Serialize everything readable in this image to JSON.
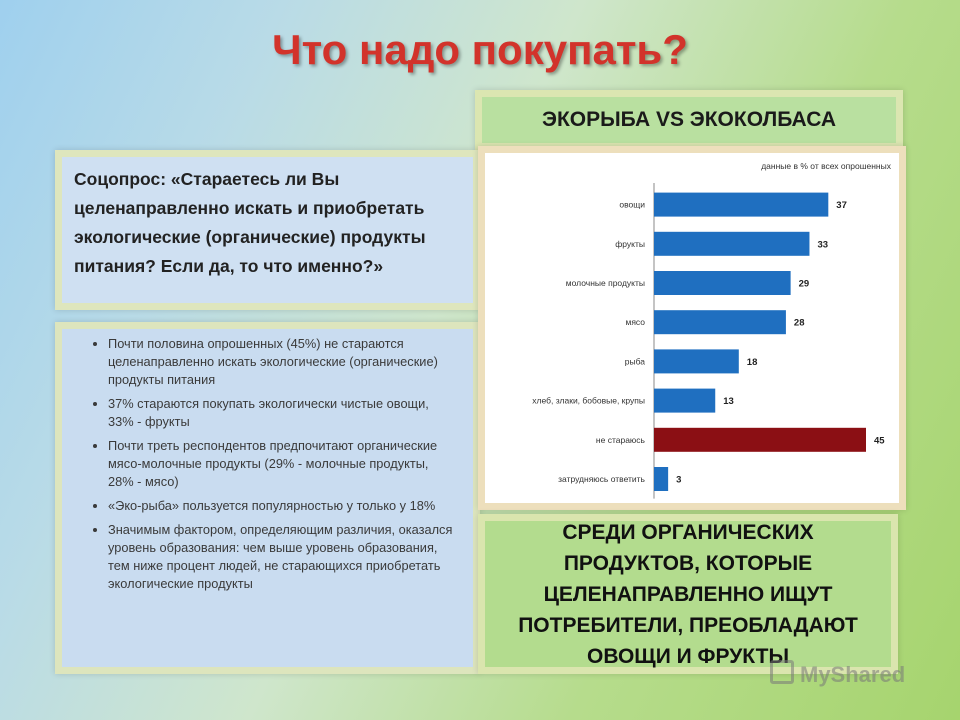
{
  "title": "Что надо покупать?",
  "subtitle": "ЭКОРЫБА VS ЭКОКОЛБАСА",
  "survey_question": "Соцопрос: «Стараетесь ли Вы целенаправленно искать и приобретать экологические (органические) продукты питания? Если да, то что именно?»",
  "bullets": [
    "Почти половина опрошенных (45%) не стараются целенаправленно искать экологические (органические) продукты питания",
    "37% стараются покупать экологически чистые овощи, 33% - фрукты",
    "Почти треть респондентов предпочитают органические мясо-молочные продукты (29% - молочные продукты, 28% - мясо)",
    "«Эко-рыба» пользуется популярностью у только у 18%",
    "Значимым фактором, определяющим различия, оказался уровень образования: чем выше уровень образования, тем ниже процент людей, не старающихся приобретать экологические продукты"
  ],
  "conclusion": "СРЕДИ ОРГАНИЧЕСКИХ ПРОДУКТОВ, КОТОРЫЕ ЦЕЛЕНАПРАВЛЕННО ИЩУТ ПОТРЕБИТЕЛИ, ПРЕОБЛАДАЮТ ОВОЩИ И ФРУКТЫ",
  "watermark": "MyShared",
  "chart_data": {
    "type": "bar",
    "orientation": "horizontal",
    "note": "данные в % от всех опрошенных",
    "categories": [
      "овощи",
      "фрукты",
      "молочные продукты",
      "мясо",
      "рыба",
      "хлеб, злаки, бобовые, крупы",
      "не стараюсь",
      "затрудняюсь ответить"
    ],
    "values": [
      37,
      33,
      29,
      28,
      18,
      13,
      45,
      3
    ],
    "colors": [
      "#1f6fc0",
      "#1f6fc0",
      "#1f6fc0",
      "#1f6fc0",
      "#1f6fc0",
      "#1f6fc0",
      "#8b0f14",
      "#1f6fc0"
    ],
    "xlim": [
      0,
      45
    ],
    "grid": false
  }
}
